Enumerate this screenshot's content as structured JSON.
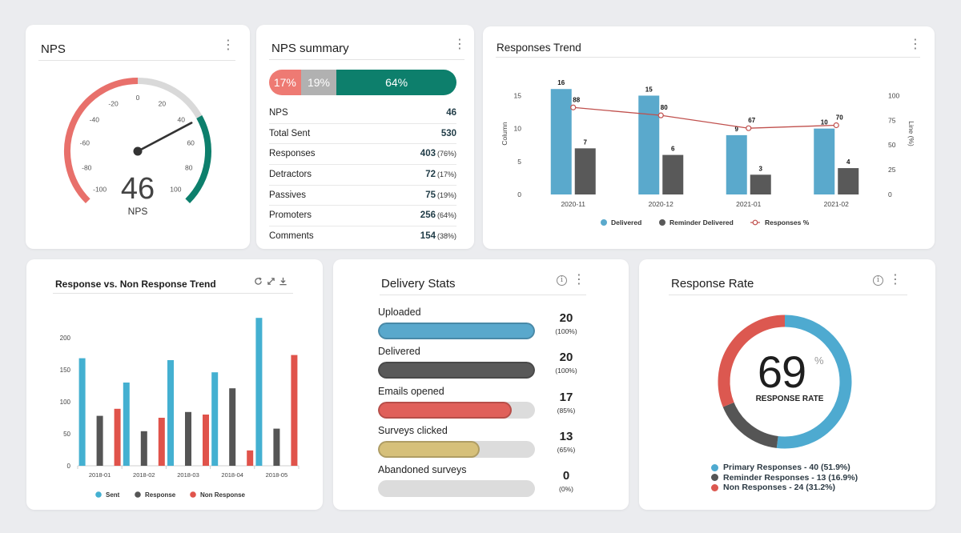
{
  "nps_card": {
    "title": "NPS",
    "value": "46",
    "label": "NPS",
    "gauge_ticks": [
      "-100",
      "-80",
      "-60",
      "-40",
      "-20",
      "0",
      "20",
      "40",
      "60",
      "80",
      "100"
    ],
    "score": 46,
    "colors": {
      "detractor": "#e8706b",
      "passive": "#d9d9d9",
      "promoter": "#0d7f6c",
      "needle": "#333333"
    }
  },
  "nps_summary": {
    "title": "NPS summary",
    "bar": [
      {
        "label": "17%",
        "pct": 17,
        "color": "#ee7a73"
      },
      {
        "label": "19%",
        "pct": 19,
        "color": "#b1b1b1"
      },
      {
        "label": "64%",
        "pct": 64,
        "color": "#0d7f6c"
      }
    ],
    "rows": [
      {
        "label": "NPS",
        "value": "46",
        "pct": ""
      },
      {
        "label": "Total Sent",
        "value": "530",
        "pct": ""
      },
      {
        "label": "Responses",
        "value": "403",
        "pct": "(76%)"
      },
      {
        "label": "Detractors",
        "value": "72",
        "pct": "(17%)"
      },
      {
        "label": "Passives",
        "value": "75",
        "pct": "(19%)"
      },
      {
        "label": "Promoters",
        "value": "256",
        "pct": "(64%)"
      },
      {
        "label": "Comments",
        "value": "154",
        "pct": "(38%)"
      }
    ]
  },
  "responses_trend": {
    "title": "Responses Trend",
    "chart_data": {
      "type": "bar",
      "categories": [
        "2020-11",
        "2020-12",
        "2021-01",
        "2021-02"
      ],
      "series": [
        {
          "name": "Delivered",
          "type": "bar",
          "axis": "left",
          "values": [
            16,
            15,
            9,
            10
          ],
          "labels": [
            "16",
            "15",
            "9",
            "10"
          ],
          "color": "#5aa9cc"
        },
        {
          "name": "Reminder Delivered",
          "type": "bar",
          "axis": "left",
          "values": [
            7,
            6,
            3,
            4
          ],
          "labels": [
            "7",
            "6",
            "3",
            "4"
          ],
          "color": "#595959"
        },
        {
          "name": "Responses %",
          "type": "line",
          "axis": "right",
          "values": [
            88,
            80,
            67,
            70
          ],
          "labels": [
            "88",
            "80",
            "67",
            "70"
          ],
          "color": "#c0504d"
        }
      ],
      "ylabel": "Column",
      "y2label": "Line (%)",
      "ylim": [
        0,
        17
      ],
      "y2lim": [
        0,
        113.3
      ],
      "yticks": [
        "0",
        "5",
        "10",
        "15"
      ],
      "y2ticks": [
        "0",
        "25",
        "50",
        "75",
        "100"
      ],
      "legend_position": "bottom"
    }
  },
  "response_trend": {
    "title": "Response vs. Non Response Trend",
    "chart_data": {
      "type": "bar",
      "categories": [
        "2018-01",
        "2018-02",
        "2018-03",
        "2018-04",
        "2018-05"
      ],
      "series": [
        {
          "name": "Sent",
          "values": [
            168,
            130,
            165,
            146,
            231
          ],
          "color": "#44b0d1"
        },
        {
          "name": "Response",
          "values": [
            78,
            54,
            84,
            121,
            58
          ],
          "color": "#555555"
        },
        {
          "name": "Non Response",
          "values": [
            89,
            75,
            80,
            24,
            173
          ],
          "color": "#e0534b"
        }
      ],
      "ylim": [
        0,
        235
      ],
      "yticks": [
        "0",
        "50",
        "100",
        "150",
        "200"
      ],
      "legend_position": "bottom"
    }
  },
  "delivery_stats": {
    "title": "Delivery Stats",
    "items": [
      {
        "label": "Uploaded",
        "value": "20",
        "pct": "(100%)",
        "fill": 1.0,
        "color": "#59a8cc"
      },
      {
        "label": "Delivered",
        "value": "20",
        "pct": "(100%)",
        "fill": 1.0,
        "color": "#595959"
      },
      {
        "label": "Emails opened",
        "value": "17",
        "pct": "(85%)",
        "fill": 0.85,
        "color": "#e0605a"
      },
      {
        "label": "Surveys clicked",
        "value": "13",
        "pct": "(65%)",
        "fill": 0.65,
        "color": "#d6c07a"
      },
      {
        "label": "Abandoned surveys",
        "value": "0",
        "pct": "(0%)",
        "fill": 0.0,
        "color": "#dcdcdc"
      }
    ]
  },
  "response_rate": {
    "title": "Response Rate",
    "value": "69",
    "unit": "%",
    "label": "RESPONSE RATE",
    "chart_data": {
      "type": "pie",
      "slices": [
        {
          "name": "Primary Responses - 40 (51.9%)",
          "value": 40,
          "color": "#4eaad0"
        },
        {
          "name": "Reminder Responses - 13 (16.9%)",
          "value": 13,
          "color": "#555555"
        },
        {
          "name": "Non Responses - 24 (31.2%)",
          "value": 24,
          "color": "#dc5850"
        }
      ]
    }
  }
}
